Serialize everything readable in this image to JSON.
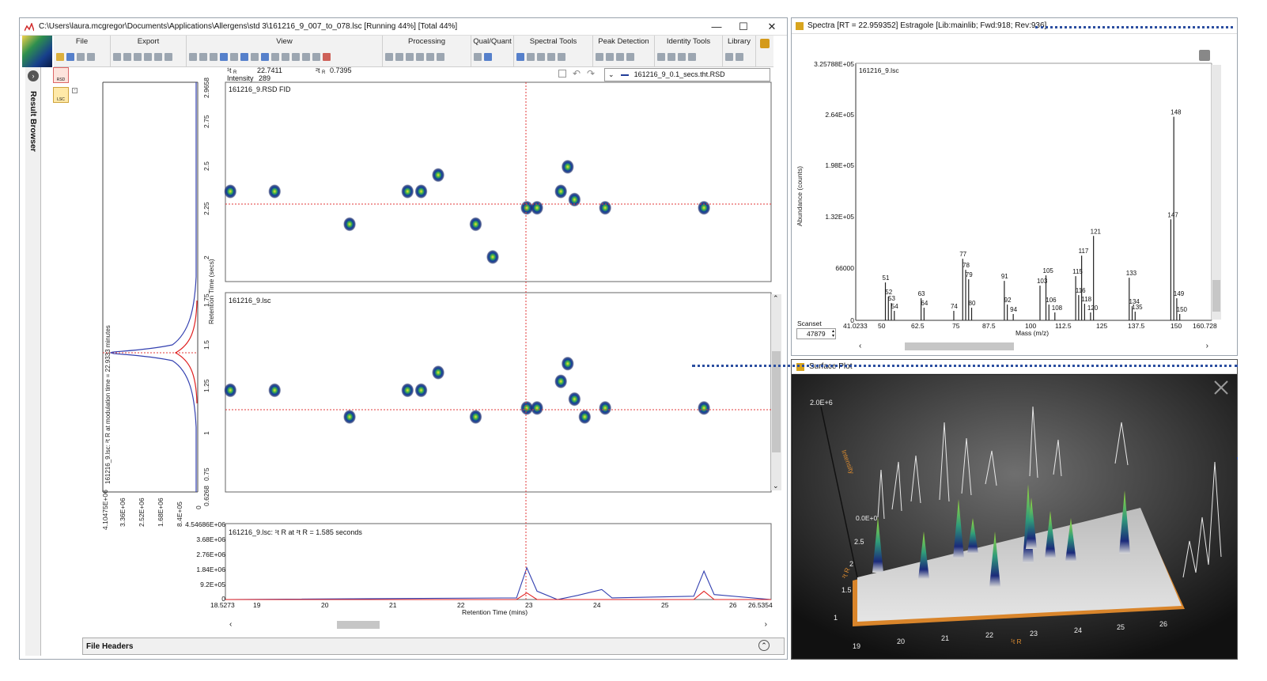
{
  "main_window": {
    "title": "C:\\Users\\laura.mcgregor\\Documents\\Applications\\Allergens\\std 3\\161216_9_007_to_078.lsc [Running 44%] [Total 44%]",
    "controls": [
      "—",
      "☐",
      "✕"
    ]
  },
  "ribbon": {
    "groups": [
      "File",
      "Export",
      "View",
      "Processing",
      "Qual/Quant",
      "Spectral Tools",
      "Peak Detection",
      "Identity Tools",
      "Library"
    ]
  },
  "sidebar": {
    "label": "Result Browser"
  },
  "file_buttons": [
    "RSD",
    "LSC"
  ],
  "readout": {
    "t1_label": "¹t",
    "t1_sub": "R",
    "t1_value": "22.7411",
    "t2_label": "²t",
    "t2_sub": "R",
    "t2_value": "0.7395",
    "intensity_label": "Intensity",
    "intensity_value": "289"
  },
  "dataset_select": {
    "value": "161216_9_0.1_secs.tht.RSD"
  },
  "plots": {
    "top": {
      "title": "161216_9.RSD FID"
    },
    "middle": {
      "title": "161216_9.lsc"
    },
    "y_axis_label": "Retention Time (secs)",
    "y_ticks": [
      "2.9658",
      "2.75",
      "2.5",
      "2.25",
      "2",
      "1.75",
      "1.5",
      "1.25",
      "1",
      "0.75",
      "0.6268"
    ],
    "left_trace_label": "161216_9.lsc: ²t R at modulation time = 22.9333 minutes",
    "left_x_ticks": [
      "4.10475E+06",
      "3.36E+06",
      "2.52E+06",
      "1.68E+06",
      "8.4E+05",
      "0"
    ],
    "bottom": {
      "title": "161216_9.lsc:  ¹t R at ²t R = 1.585 seconds",
      "y_ticks": [
        "4.54686E+06",
        "3.68E+06",
        "2.76E+06",
        "1.84E+06",
        "9.2E+05",
        "0"
      ],
      "x_ticks": [
        "18.5273",
        "19",
        "20",
        "21",
        "22",
        "23",
        "24",
        "25",
        "26",
        "26.5354"
      ],
      "x_label": "Retention Time (mins)"
    }
  },
  "file_headers": {
    "label": "File Headers"
  },
  "spectra_window": {
    "title": "Spectra [RT = 22.959352] Estragole [Lib:mainlib; Fwd:918; Rev:936]",
    "plot_title": "161216_9.lsc",
    "y_label": "Abundance (counts)",
    "y_ticks": [
      "3.25788E+05",
      "2.64E+05",
      "1.98E+05",
      "1.32E+05",
      "66000",
      "0"
    ],
    "x_ticks": [
      "41.0233",
      "50",
      "62.5",
      "75",
      "87.5",
      "100",
      "112.5",
      "125",
      "137.5",
      "150",
      "160.728"
    ],
    "x_label": "Mass (m/z)",
    "scanset_label": "Scanset",
    "scanset_value": "47879",
    "peak_labels": [
      "51",
      "52",
      "53",
      "54",
      "63",
      "64",
      "74",
      "77",
      "78",
      "79",
      "80",
      "91",
      "92",
      "94",
      "103",
      "105",
      "106",
      "108",
      "115",
      "116",
      "117",
      "118",
      "120",
      "121",
      "133",
      "134",
      "135",
      "147",
      "148",
      "149",
      "150"
    ]
  },
  "surface_window": {
    "title": "Surface Plot",
    "z_label": "Intensity",
    "z_top": "2.0E+6",
    "z_zero": "0.0E+0",
    "y_ticks": [
      "2.5",
      "2",
      "1.5",
      "1"
    ],
    "y_label": "²t R",
    "x_ticks": [
      "19",
      "20",
      "21",
      "22",
      "23",
      "24",
      "25",
      "26"
    ],
    "x_label": "¹t R"
  },
  "colors": {
    "accent_blue": "#2b4ea0",
    "trace_blue": "#3340b0",
    "trace_red": "#e02020",
    "crosshair": "#e03a3a",
    "surface_bg": "#1c1c1c"
  },
  "chart_data": [
    {
      "type": "scatter",
      "title": "161216_9.RSD FID",
      "xlabel": "Retention Time (mins)",
      "ylabel": "Retention Time (secs)",
      "xlim": [
        18.5273,
        26.5354
      ],
      "ylim": [
        1.75,
        2.9658
      ],
      "x": [
        18.6,
        19.25,
        20.35,
        21.2,
        21.4,
        21.65,
        22.2,
        22.45,
        22.95,
        23.1,
        23.45,
        23.55,
        23.65,
        24.1,
        25.55
      ],
      "y": [
        2.3,
        2.3,
        2.1,
        2.3,
        2.3,
        2.4,
        2.1,
        1.9,
        2.2,
        2.2,
        2.3,
        2.45,
        2.25,
        2.2,
        2.2
      ]
    },
    {
      "type": "scatter",
      "title": "161216_9.lsc",
      "xlabel": "Retention Time (mins)",
      "ylabel": "Retention Time (secs)",
      "xlim": [
        18.5273,
        26.5354
      ],
      "ylim": [
        0.6268,
        1.75
      ],
      "x": [
        18.6,
        19.25,
        20.35,
        21.2,
        21.4,
        21.65,
        22.2,
        22.95,
        23.1,
        23.45,
        23.55,
        23.65,
        23.8,
        24.1,
        25.55
      ],
      "y": [
        1.2,
        1.2,
        1.05,
        1.2,
        1.2,
        1.3,
        1.05,
        1.1,
        1.1,
        1.25,
        1.35,
        1.15,
        1.05,
        1.1,
        1.1
      ]
    },
    {
      "type": "line",
      "title": "161216_9.lsc:  ¹t R at ²t R = 1.585 seconds",
      "xlabel": "Retention Time (mins)",
      "xlim": [
        18.5273,
        26.5354
      ],
      "ylim": [
        0,
        4546860
      ],
      "series": [
        {
          "x": [
            18.5273,
            22.8,
            22.95,
            23.1,
            23.4,
            23.7,
            24.05,
            24.2,
            25.4,
            25.55,
            25.7,
            26.5354
          ],
          "values": [
            0,
            100000,
            1900000,
            500000,
            0,
            250000,
            600000,
            100000,
            200000,
            1700000,
            300000,
            0
          ]
        },
        {
          "x": [
            18.5273,
            22.8,
            22.95,
            23.1,
            25.4,
            25.55,
            25.7,
            26.5354
          ],
          "values": [
            0,
            0,
            400000,
            0,
            0,
            500000,
            0,
            0
          ]
        }
      ]
    },
    {
      "type": "bar",
      "title": "161216_9.lsc",
      "xlabel": "Mass (m/z)",
      "ylabel": "Abundance (counts)",
      "xlim": [
        41.0233,
        160.728
      ],
      "ylim": [
        0,
        325788
      ],
      "categories": [
        "51",
        "52",
        "53",
        "54",
        "63",
        "64",
        "74",
        "77",
        "78",
        "79",
        "80",
        "91",
        "92",
        "94",
        "103",
        "105",
        "106",
        "108",
        "115",
        "116",
        "117",
        "118",
        "120",
        "121",
        "133",
        "134",
        "135",
        "147",
        "148",
        "149",
        "150"
      ],
      "values": [
        48000,
        30000,
        22000,
        12000,
        28000,
        16000,
        12000,
        78000,
        64000,
        52000,
        16000,
        50000,
        20000,
        8000,
        44000,
        57000,
        20000,
        10000,
        56000,
        32000,
        82000,
        21000,
        10000,
        107000,
        54000,
        18000,
        11000,
        128000,
        258000,
        28000,
        8000
      ]
    }
  ]
}
